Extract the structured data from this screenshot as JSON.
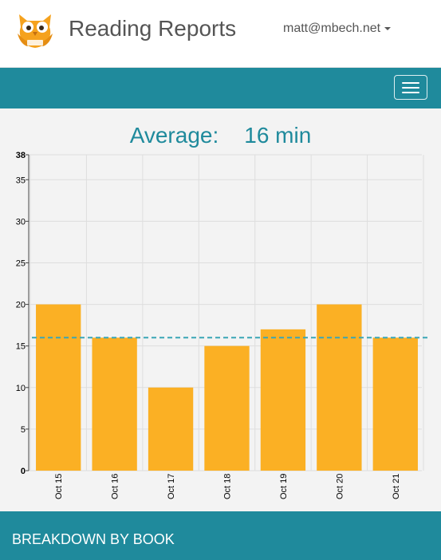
{
  "header": {
    "app_title": "Reading Reports",
    "user_email": "matt@mbech.net",
    "logo_icon": "owl-logo-icon",
    "brand_color": "#f5a21e"
  },
  "navbar": {
    "menu_icon": "hamburger-menu-icon",
    "color": "#1f8a9c"
  },
  "summary": {
    "average_label": "Average:",
    "average_value": "16 min"
  },
  "chart_data": {
    "type": "bar",
    "categories": [
      "Oct 15",
      "Oct 16",
      "Oct 17",
      "Oct 18",
      "Oct 19",
      "Oct 20",
      "Oct 21"
    ],
    "values": [
      20,
      16,
      10,
      15,
      17,
      20,
      16
    ],
    "average": 16,
    "ylim": [
      0,
      38
    ],
    "yticks": [
      0,
      5,
      10,
      15,
      20,
      25,
      30,
      35,
      38
    ],
    "grid": true,
    "bar_color": "#fbb024",
    "average_line_color": "#3aa6b6"
  },
  "breakdown": {
    "title": "BREAKDOWN BY BOOK"
  }
}
